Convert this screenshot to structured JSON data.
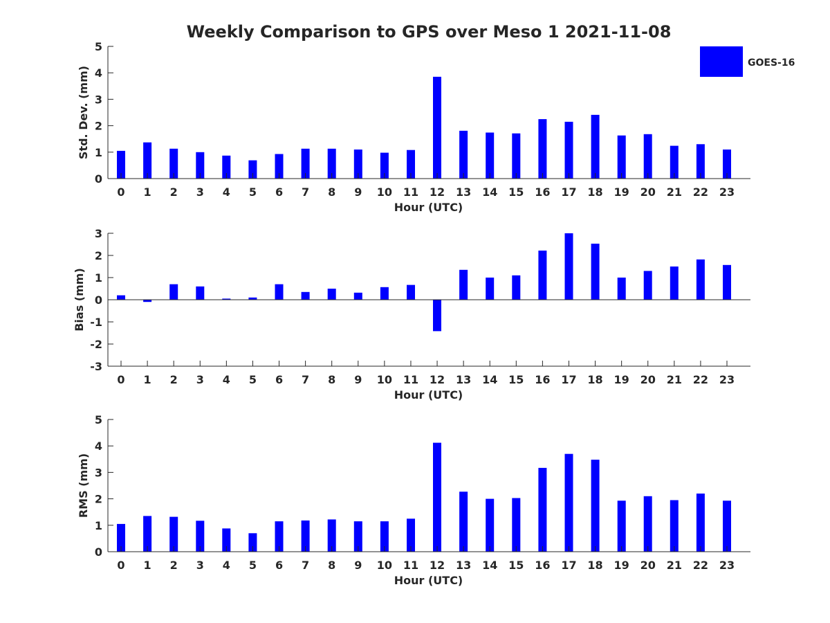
{
  "figure": {
    "title": "Weekly Comparison to GPS over Meso 1 2021-11-08",
    "bar_color": "#0000ff",
    "legend": {
      "label": "GOES-16",
      "placement": "top-right"
    }
  },
  "chart_data": [
    {
      "type": "bar",
      "xlabel": "Hour (UTC)",
      "ylabel": "Std. Dev. (mm)",
      "ylim": [
        0,
        5
      ],
      "yticks": [
        0,
        1,
        2,
        3,
        4,
        5
      ],
      "categories": [
        "0",
        "1",
        "2",
        "3",
        "4",
        "5",
        "6",
        "7",
        "8",
        "9",
        "10",
        "11",
        "12",
        "13",
        "14",
        "15",
        "16",
        "17",
        "18",
        "19",
        "20",
        "21",
        "22",
        "23"
      ],
      "series": [
        {
          "name": "GOES-16",
          "values": [
            1.05,
            1.37,
            1.13,
            1.0,
            0.87,
            0.69,
            0.93,
            1.13,
            1.13,
            1.1,
            0.98,
            1.08,
            3.85,
            1.81,
            1.74,
            1.71,
            2.25,
            2.15,
            2.41,
            1.63,
            1.68,
            1.24,
            1.3,
            1.1
          ]
        }
      ],
      "grid": false
    },
    {
      "type": "bar",
      "xlabel": "Hour (UTC)",
      "ylabel": "Bias (mm)",
      "ylim": [
        -3,
        3
      ],
      "yticks": [
        -3,
        -2,
        -1,
        0,
        1,
        2,
        3
      ],
      "categories": [
        "0",
        "1",
        "2",
        "3",
        "4",
        "5",
        "6",
        "7",
        "8",
        "9",
        "10",
        "11",
        "12",
        "13",
        "14",
        "15",
        "16",
        "17",
        "18",
        "19",
        "20",
        "21",
        "22",
        "23"
      ],
      "series": [
        {
          "name": "GOES-16",
          "values": [
            0.2,
            -0.1,
            0.7,
            0.6,
            0.05,
            0.1,
            0.7,
            0.35,
            0.5,
            0.32,
            0.57,
            0.67,
            -1.42,
            1.35,
            1.0,
            1.1,
            2.22,
            3.0,
            2.53,
            1.0,
            1.3,
            1.5,
            1.82,
            1.57
          ]
        }
      ],
      "grid": false
    },
    {
      "type": "bar",
      "xlabel": "Hour (UTC)",
      "ylabel": "RMS (mm)",
      "ylim": [
        0,
        5
      ],
      "yticks": [
        0,
        1,
        2,
        3,
        4,
        5
      ],
      "categories": [
        "0",
        "1",
        "2",
        "3",
        "4",
        "5",
        "6",
        "7",
        "8",
        "9",
        "10",
        "11",
        "12",
        "13",
        "14",
        "15",
        "16",
        "17",
        "18",
        "19",
        "20",
        "21",
        "22",
        "23"
      ],
      "series": [
        {
          "name": "GOES-16",
          "values": [
            1.05,
            1.35,
            1.32,
            1.17,
            0.88,
            0.7,
            1.15,
            1.18,
            1.22,
            1.15,
            1.15,
            1.25,
            4.12,
            2.27,
            2.0,
            2.03,
            3.17,
            3.7,
            3.48,
            1.93,
            2.1,
            1.95,
            2.2,
            1.93
          ]
        }
      ],
      "grid": false
    }
  ]
}
